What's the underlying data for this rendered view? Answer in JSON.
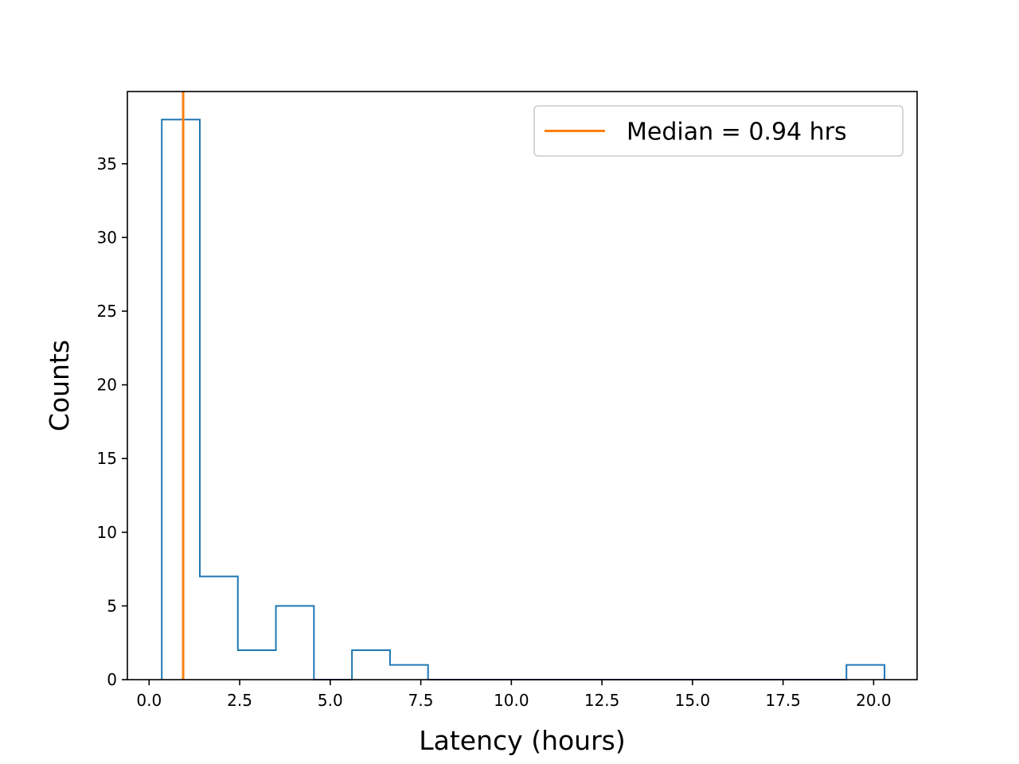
{
  "chart_data": {
    "type": "histogram",
    "title": "",
    "xlabel": "Latency (hours)",
    "ylabel": "Counts",
    "xlim": [
      -0.6,
      21.2
    ],
    "ylim": [
      0,
      39.9
    ],
    "x_ticks": [
      0.0,
      2.5,
      5.0,
      7.5,
      10.0,
      12.5,
      15.0,
      17.5,
      20.0
    ],
    "x_tick_labels": [
      "0.0",
      "2.5",
      "5.0",
      "7.5",
      "10.0",
      "12.5",
      "15.0",
      "17.5",
      "20.0"
    ],
    "y_ticks": [
      0,
      5,
      10,
      15,
      20,
      25,
      30,
      35
    ],
    "y_tick_labels": [
      "0",
      "5",
      "10",
      "15",
      "20",
      "25",
      "30",
      "35"
    ],
    "grid": false,
    "legend_position": "top-right",
    "bin_edges": [
      0.35,
      1.4,
      2.45,
      3.5,
      4.55,
      5.6,
      6.65,
      7.7,
      8.75,
      9.8,
      10.85,
      11.9,
      12.95,
      14.0,
      15.05,
      16.1,
      17.15,
      18.2,
      19.25,
      20.3
    ],
    "counts": [
      38,
      7,
      2,
      5,
      0,
      2,
      1,
      0,
      0,
      0,
      0,
      0,
      0,
      0,
      0,
      0,
      0,
      0,
      1
    ],
    "series": [
      {
        "name": "",
        "kind": "step-histogram",
        "color": "#1f77b4"
      },
      {
        "name": "Median = 0.94 hrs",
        "kind": "vertical-line",
        "x": 0.94,
        "color": "#ff7f0e"
      }
    ]
  }
}
